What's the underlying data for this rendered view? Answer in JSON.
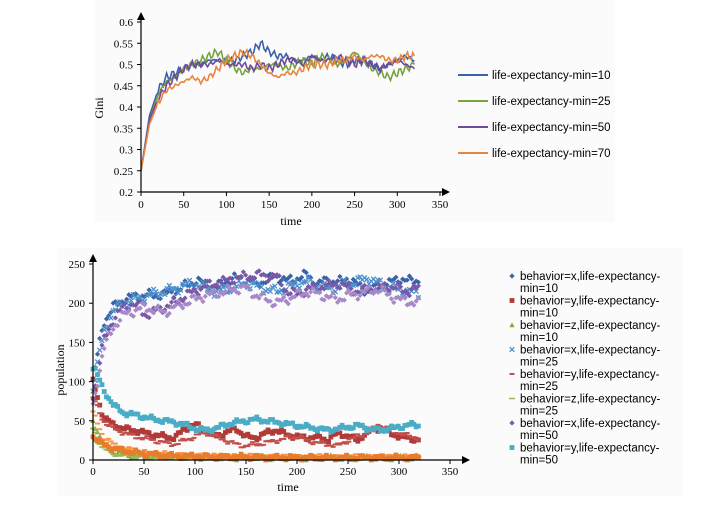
{
  "chart_data": [
    {
      "type": "line",
      "title": "",
      "xlabel": "time",
      "ylabel": "Gini",
      "xlim": [
        0,
        350
      ],
      "ylim": [
        0.2,
        0.6
      ],
      "xticks": [
        "0",
        "50",
        "100",
        "150",
        "200",
        "250",
        "300",
        "350"
      ],
      "yticks": [
        "0.2",
        "0.25",
        "0.3",
        "0.35",
        "0.4",
        "0.45",
        "0.5",
        "0.55",
        "0.6"
      ],
      "x": [
        0,
        10,
        20,
        30,
        40,
        50,
        60,
        70,
        80,
        90,
        100,
        110,
        120,
        130,
        140,
        150,
        160,
        170,
        180,
        190,
        200,
        210,
        220,
        230,
        240,
        250,
        260,
        270,
        280,
        290,
        300,
        310,
        320
      ],
      "series": [
        {
          "name": "life-expectancy-min=10",
          "color": "#3a62a7",
          "values": [
            0.25,
            0.38,
            0.44,
            0.47,
            0.48,
            0.49,
            0.5,
            0.5,
            0.51,
            0.51,
            0.51,
            0.51,
            0.52,
            0.53,
            0.55,
            0.53,
            0.52,
            0.52,
            0.51,
            0.51,
            0.52,
            0.51,
            0.52,
            0.51,
            0.5,
            0.51,
            0.51,
            0.5,
            0.49,
            0.5,
            0.51,
            0.52,
            0.51
          ]
        },
        {
          "name": "life-expectancy-min=25",
          "color": "#77a33f",
          "values": [
            0.25,
            0.37,
            0.43,
            0.46,
            0.47,
            0.49,
            0.5,
            0.51,
            0.52,
            0.53,
            0.51,
            0.49,
            0.48,
            0.49,
            0.49,
            0.5,
            0.5,
            0.49,
            0.5,
            0.51,
            0.5,
            0.52,
            0.51,
            0.5,
            0.51,
            0.53,
            0.51,
            0.49,
            0.48,
            0.47,
            0.48,
            0.49,
            0.5
          ]
        },
        {
          "name": "life-expectancy-min=50",
          "color": "#6f4a9c",
          "values": [
            0.25,
            0.37,
            0.42,
            0.45,
            0.47,
            0.49,
            0.5,
            0.5,
            0.5,
            0.51,
            0.5,
            0.5,
            0.5,
            0.49,
            0.5,
            0.49,
            0.5,
            0.51,
            0.51,
            0.5,
            0.52,
            0.51,
            0.51,
            0.52,
            0.51,
            0.5,
            0.51,
            0.5,
            0.49,
            0.5,
            0.51,
            0.5,
            0.49
          ]
        },
        {
          "name": "life-expectancy-min=70",
          "color": "#e8853f",
          "values": [
            0.25,
            0.36,
            0.41,
            0.44,
            0.45,
            0.46,
            0.47,
            0.46,
            0.47,
            0.49,
            0.51,
            0.52,
            0.53,
            0.52,
            0.5,
            0.48,
            0.47,
            0.48,
            0.48,
            0.49,
            0.5,
            0.5,
            0.5,
            0.51,
            0.51,
            0.52,
            0.51,
            0.52,
            0.52,
            0.51,
            0.51,
            0.52,
            0.52
          ]
        }
      ]
    },
    {
      "type": "scatter",
      "title": "",
      "xlabel": "time",
      "ylabel": "population",
      "xlim": [
        0,
        350
      ],
      "ylim": [
        0,
        250
      ],
      "xticks": [
        "0",
        "50",
        "100",
        "150",
        "200",
        "250",
        "300",
        "350"
      ],
      "yticks": [
        "0",
        "50",
        "100",
        "150",
        "200",
        "250"
      ],
      "x": [
        0,
        10,
        20,
        30,
        40,
        50,
        60,
        70,
        80,
        90,
        100,
        110,
        120,
        130,
        140,
        150,
        160,
        170,
        180,
        190,
        200,
        210,
        220,
        230,
        240,
        250,
        260,
        270,
        280,
        290,
        300,
        310,
        320
      ],
      "series": [
        {
          "name": "behavior=x,life-expectancy-min=10",
          "marker": "diamond",
          "color": "#3a62a7",
          "values": [
            100,
            175,
            195,
            205,
            208,
            210,
            210,
            212,
            214,
            222,
            228,
            225,
            220,
            228,
            232,
            230,
            225,
            230,
            235,
            228,
            232,
            236,
            224,
            230,
            226,
            232,
            222,
            215,
            220,
            225,
            232,
            228,
            230
          ]
        },
        {
          "name": "behavior=y,life-expectancy-min=10",
          "marker": "square",
          "color": "#b03a37",
          "values": [
            100,
            55,
            45,
            40,
            38,
            35,
            32,
            30,
            28,
            40,
            45,
            40,
            30,
            35,
            40,
            30,
            28,
            35,
            38,
            32,
            30,
            28,
            30,
            25,
            35,
            30,
            25,
            38,
            40,
            35,
            30,
            28,
            25
          ]
        },
        {
          "name": "behavior=z,life-expectancy-min=10",
          "marker": "triangle",
          "color": "#86a83f",
          "values": [
            50,
            20,
            10,
            8,
            6,
            5,
            5,
            5,
            4,
            4,
            4,
            4,
            3,
            3,
            3,
            3,
            3,
            3,
            3,
            3,
            3,
            3,
            3,
            3,
            3,
            3,
            3,
            3,
            3,
            3,
            3,
            3,
            3
          ]
        },
        {
          "name": "behavior=x,life-expectancy-min=25",
          "marker": "cross",
          "color": "#4a90cc",
          "values": [
            90,
            160,
            190,
            200,
            205,
            208,
            212,
            215,
            218,
            222,
            225,
            220,
            215,
            218,
            220,
            225,
            222,
            218,
            215,
            220,
            225,
            228,
            222,
            218,
            220,
            224,
            228,
            232,
            225,
            220,
            218,
            215,
            212
          ]
        },
        {
          "name": "behavior=y,life-expectancy-min=25",
          "marker": "dash",
          "color": "#c0504d",
          "values": [
            80,
            50,
            40,
            35,
            30,
            28,
            25,
            22,
            20,
            25,
            30,
            35,
            30,
            25,
            20,
            18,
            20,
            22,
            25,
            28,
            30,
            25,
            22,
            20,
            18,
            25,
            30,
            35,
            45,
            40,
            35,
            30,
            28
          ]
        },
        {
          "name": "behavior=z,life-expectancy-min=25",
          "marker": "line",
          "color": "#98b954",
          "values": [
            40,
            15,
            8,
            6,
            5,
            4,
            4,
            3,
            3,
            3,
            3,
            3,
            3,
            3,
            3,
            3,
            3,
            3,
            3,
            3,
            3,
            3,
            3,
            3,
            3,
            3,
            3,
            3,
            3,
            3,
            3,
            3,
            3
          ]
        },
        {
          "name": "behavior=x,life-expectancy-min=50",
          "marker": "diamond",
          "color": "#7b57a8",
          "values": [
            80,
            150,
            180,
            195,
            200,
            185,
            190,
            195,
            200,
            210,
            215,
            222,
            225,
            228,
            232,
            234,
            236,
            235,
            234,
            215,
            212,
            218,
            220,
            222,
            225,
            220,
            215,
            218,
            220,
            222,
            218,
            215,
            220
          ]
        },
        {
          "name": "behavior=y,life-expectancy-min=50",
          "marker": "square",
          "color": "#4bacc6",
          "values": [
            120,
            90,
            70,
            60,
            58,
            55,
            52,
            50,
            48,
            45,
            40,
            38,
            40,
            45,
            48,
            50,
            52,
            50,
            48,
            46,
            44,
            42,
            40,
            38,
            40,
            42,
            44,
            40,
            38,
            40,
            42,
            45,
            44
          ]
        }
      ]
    }
  ],
  "chart2_extra_series": [
    {
      "color": "#f79646",
      "values": [
        60,
        30,
        20,
        15,
        12,
        10,
        9,
        8,
        7,
        6,
        6,
        5,
        5,
        5,
        5,
        5,
        4,
        4,
        4,
        4,
        4,
        4,
        4,
        4,
        4,
        4,
        4,
        4,
        4,
        4,
        4,
        4,
        4
      ]
    },
    {
      "color": "#a589c8",
      "values": [
        70,
        140,
        170,
        185,
        190,
        195,
        192,
        188,
        195,
        200,
        205,
        210,
        212,
        215,
        218,
        220,
        210,
        205,
        200,
        205,
        210,
        215,
        212,
        208,
        205,
        210,
        212,
        215,
        218,
        210,
        205,
        202,
        200
      ]
    },
    {
      "color": "#e97b2c",
      "values": [
        30,
        20,
        15,
        12,
        10,
        8,
        7,
        6,
        5,
        5,
        5,
        4,
        4,
        4,
        4,
        4,
        4,
        3,
        3,
        3,
        3,
        3,
        3,
        3,
        3,
        3,
        3,
        3,
        3,
        3,
        3,
        3,
        3
      ]
    }
  ],
  "legend1": [
    {
      "label": "life-expectancy-min=10",
      "color": "#3a62a7"
    },
    {
      "label": "life-expectancy-min=25",
      "color": "#77a33f"
    },
    {
      "label": "life-expectancy-min=50",
      "color": "#6f4a9c"
    },
    {
      "label": "life-expectancy-min=70",
      "color": "#e8853f"
    }
  ],
  "legend2": [
    {
      "line1": "behavior=x,life-expectancy-",
      "line2": "min=10",
      "marker": "diamond",
      "color": "#3a62a7"
    },
    {
      "line1": "behavior=y,life-expectancy-",
      "line2": "min=10",
      "marker": "square",
      "color": "#b03a37"
    },
    {
      "line1": "behavior=z,life-expectancy-",
      "line2": "min=10",
      "marker": "triangle",
      "color": "#86a83f"
    },
    {
      "line1": "behavior=x,life-expectancy-",
      "line2": "min=25",
      "marker": "cross",
      "color": "#4a90cc"
    },
    {
      "line1": "behavior=y,life-expectancy-",
      "line2": "min=25",
      "marker": "dash",
      "color": "#c0504d"
    },
    {
      "line1": "behavior=z,life-expectancy-",
      "line2": "min=25",
      "marker": "line",
      "color": "#98b954"
    },
    {
      "line1": "behavior=x,life-expectancy-",
      "line2": "min=50",
      "marker": "diamond",
      "color": "#7b57a8"
    },
    {
      "line1": "behavior=y,life-expectancy-",
      "line2": "min=50",
      "marker": "square",
      "color": "#4bacc6"
    }
  ]
}
